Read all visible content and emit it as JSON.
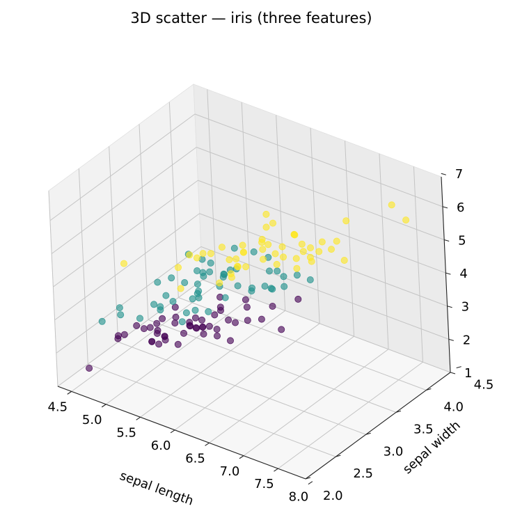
{
  "chart_data": {
    "type": "scatter",
    "subtype": "3d",
    "title": "3D scatter — iris (three features)",
    "xlabel": "sepal length",
    "ylabel": "sepal width",
    "zlabel": "",
    "xlim": [
      4.3,
      7.9
    ],
    "ylim": [
      2.0,
      4.4
    ],
    "zlim": [
      1.0,
      6.9
    ],
    "xticks": [
      "4.5",
      "5.0",
      "5.5",
      "6.0",
      "6.5",
      "7.0",
      "7.5",
      "8.0"
    ],
    "yticks": [
      "2.0",
      "2.5",
      "3.0",
      "3.5",
      "4.0",
      "4.5"
    ],
    "zticks": [
      "1",
      "2",
      "3",
      "4",
      "5",
      "6",
      "7"
    ],
    "grid": true,
    "colormap": "viridis",
    "series": [
      {
        "color": "#440154",
        "points": [
          [
            5.1,
            3.5,
            1.4
          ],
          [
            4.9,
            3.0,
            1.4
          ],
          [
            4.7,
            3.2,
            1.3
          ],
          [
            4.6,
            3.1,
            1.5
          ],
          [
            5.0,
            3.6,
            1.4
          ],
          [
            5.4,
            3.9,
            1.7
          ],
          [
            4.6,
            3.4,
            1.4
          ],
          [
            5.0,
            3.4,
            1.5
          ],
          [
            4.4,
            2.9,
            1.4
          ],
          [
            4.9,
            3.1,
            1.5
          ],
          [
            5.4,
            3.7,
            1.5
          ],
          [
            4.8,
            3.4,
            1.6
          ],
          [
            4.8,
            3.0,
            1.4
          ],
          [
            4.3,
            3.0,
            1.1
          ],
          [
            5.8,
            4.0,
            1.2
          ],
          [
            5.7,
            4.4,
            1.5
          ],
          [
            5.4,
            3.9,
            1.3
          ],
          [
            5.1,
            3.5,
            1.4
          ],
          [
            5.7,
            3.8,
            1.7
          ],
          [
            5.1,
            3.8,
            1.5
          ],
          [
            5.4,
            3.4,
            1.7
          ],
          [
            5.1,
            3.7,
            1.5
          ],
          [
            4.6,
            3.6,
            1.0
          ],
          [
            5.1,
            3.3,
            1.7
          ],
          [
            4.8,
            3.4,
            1.9
          ],
          [
            5.0,
            3.0,
            1.6
          ],
          [
            5.0,
            3.4,
            1.6
          ],
          [
            5.2,
            3.5,
            1.5
          ],
          [
            5.2,
            3.4,
            1.4
          ],
          [
            4.7,
            3.2,
            1.6
          ],
          [
            4.8,
            3.1,
            1.6
          ],
          [
            5.4,
            3.4,
            1.5
          ],
          [
            5.2,
            4.1,
            1.5
          ],
          [
            5.5,
            4.2,
            1.4
          ],
          [
            4.9,
            3.1,
            1.5
          ],
          [
            5.0,
            3.2,
            1.2
          ],
          [
            5.5,
            3.5,
            1.3
          ],
          [
            4.4,
            3.0,
            1.3
          ],
          [
            5.1,
            3.4,
            1.5
          ],
          [
            5.0,
            3.5,
            1.3
          ],
          [
            4.5,
            2.3,
            1.3
          ],
          [
            4.4,
            3.2,
            1.3
          ],
          [
            5.0,
            3.5,
            1.6
          ],
          [
            5.1,
            3.8,
            1.9
          ],
          [
            4.8,
            3.0,
            1.4
          ],
          [
            5.1,
            3.8,
            1.6
          ],
          [
            4.6,
            3.2,
            1.4
          ],
          [
            5.3,
            3.7,
            1.5
          ],
          [
            5.0,
            3.3,
            1.4
          ]
        ]
      },
      {
        "color": "#21918c",
        "points": [
          [
            7.0,
            3.2,
            4.7
          ],
          [
            6.4,
            3.2,
            4.5
          ],
          [
            6.9,
            3.1,
            4.9
          ],
          [
            5.5,
            2.3,
            4.0
          ],
          [
            6.5,
            2.8,
            4.6
          ],
          [
            5.7,
            2.8,
            4.5
          ],
          [
            6.3,
            3.3,
            4.7
          ],
          [
            4.9,
            2.4,
            3.3
          ],
          [
            6.6,
            2.9,
            4.6
          ],
          [
            5.2,
            2.7,
            3.9
          ],
          [
            5.0,
            2.0,
            3.5
          ],
          [
            5.9,
            3.0,
            4.2
          ],
          [
            6.0,
            2.2,
            4.0
          ],
          [
            6.1,
            2.9,
            4.7
          ],
          [
            5.6,
            2.9,
            3.6
          ],
          [
            6.7,
            3.1,
            4.4
          ],
          [
            5.6,
            3.0,
            4.5
          ],
          [
            5.8,
            2.7,
            4.1
          ],
          [
            6.2,
            2.2,
            4.5
          ],
          [
            5.6,
            2.5,
            3.9
          ],
          [
            5.9,
            3.2,
            4.8
          ],
          [
            6.1,
            2.8,
            4.0
          ],
          [
            6.3,
            2.5,
            4.9
          ],
          [
            6.1,
            2.8,
            4.7
          ],
          [
            6.4,
            2.9,
            4.3
          ],
          [
            6.6,
            3.0,
            4.4
          ],
          [
            6.8,
            2.8,
            4.8
          ],
          [
            6.7,
            3.0,
            5.0
          ],
          [
            6.0,
            2.9,
            4.5
          ],
          [
            5.7,
            2.6,
            3.5
          ],
          [
            5.5,
            2.4,
            3.8
          ],
          [
            5.5,
            2.4,
            3.7
          ],
          [
            5.8,
            2.7,
            3.9
          ],
          [
            6.0,
            2.7,
            5.1
          ],
          [
            5.4,
            3.0,
            4.5
          ],
          [
            6.0,
            3.4,
            4.5
          ],
          [
            6.7,
            3.1,
            4.7
          ],
          [
            6.3,
            2.3,
            4.4
          ],
          [
            5.6,
            3.0,
            4.1
          ],
          [
            5.5,
            2.5,
            4.0
          ],
          [
            5.5,
            2.6,
            4.4
          ],
          [
            6.1,
            3.0,
            4.6
          ],
          [
            5.8,
            2.6,
            4.0
          ],
          [
            5.0,
            2.3,
            3.3
          ],
          [
            5.6,
            2.7,
            4.2
          ],
          [
            5.7,
            3.0,
            4.2
          ],
          [
            5.7,
            2.9,
            4.2
          ],
          [
            6.2,
            2.9,
            4.3
          ],
          [
            5.1,
            2.5,
            3.0
          ],
          [
            5.7,
            2.8,
            4.1
          ]
        ]
      },
      {
        "color": "#fde725",
        "points": [
          [
            6.3,
            3.3,
            6.0
          ],
          [
            5.8,
            2.7,
            5.1
          ],
          [
            7.1,
            3.0,
            5.9
          ],
          [
            6.3,
            2.9,
            5.6
          ],
          [
            6.5,
            3.0,
            5.8
          ],
          [
            7.6,
            3.0,
            6.6
          ],
          [
            4.9,
            2.5,
            4.5
          ],
          [
            7.3,
            2.9,
            6.3
          ],
          [
            6.7,
            2.5,
            5.8
          ],
          [
            7.2,
            3.6,
            6.1
          ],
          [
            6.5,
            3.2,
            5.1
          ],
          [
            6.4,
            2.7,
            5.3
          ],
          [
            6.8,
            3.0,
            5.5
          ],
          [
            5.7,
            2.5,
            5.0
          ],
          [
            5.8,
            2.8,
            5.1
          ],
          [
            6.4,
            3.2,
            5.3
          ],
          [
            6.5,
            3.0,
            5.5
          ],
          [
            7.7,
            3.8,
            6.7
          ],
          [
            7.7,
            2.6,
            6.9
          ],
          [
            6.0,
            2.2,
            5.0
          ],
          [
            6.9,
            3.2,
            5.7
          ],
          [
            5.6,
            2.8,
            4.9
          ],
          [
            7.7,
            2.8,
            6.7
          ],
          [
            6.3,
            2.7,
            4.9
          ],
          [
            6.7,
            3.3,
            5.7
          ],
          [
            7.2,
            3.2,
            6.0
          ],
          [
            6.2,
            2.8,
            4.8
          ],
          [
            6.1,
            3.0,
            4.9
          ],
          [
            6.4,
            2.8,
            5.6
          ],
          [
            7.2,
            3.0,
            5.8
          ],
          [
            7.4,
            2.8,
            6.1
          ],
          [
            7.9,
            3.8,
            6.4
          ],
          [
            6.4,
            2.8,
            5.6
          ],
          [
            6.3,
            2.8,
            5.1
          ],
          [
            6.1,
            2.6,
            5.6
          ],
          [
            7.7,
            3.0,
            6.1
          ],
          [
            6.3,
            3.4,
            5.6
          ],
          [
            6.4,
            3.1,
            5.5
          ],
          [
            6.0,
            3.0,
            4.8
          ],
          [
            6.9,
            3.1,
            5.4
          ],
          [
            6.7,
            3.1,
            5.6
          ],
          [
            6.9,
            3.1,
            5.1
          ],
          [
            6.8,
            3.2,
            5.9
          ],
          [
            6.7,
            3.3,
            5.7
          ],
          [
            6.7,
            3.0,
            5.2
          ],
          [
            6.3,
            2.5,
            5.0
          ],
          [
            6.5,
            3.0,
            5.2
          ],
          [
            6.2,
            3.4,
            5.4
          ],
          [
            5.9,
            3.0,
            5.1
          ]
        ]
      }
    ]
  }
}
